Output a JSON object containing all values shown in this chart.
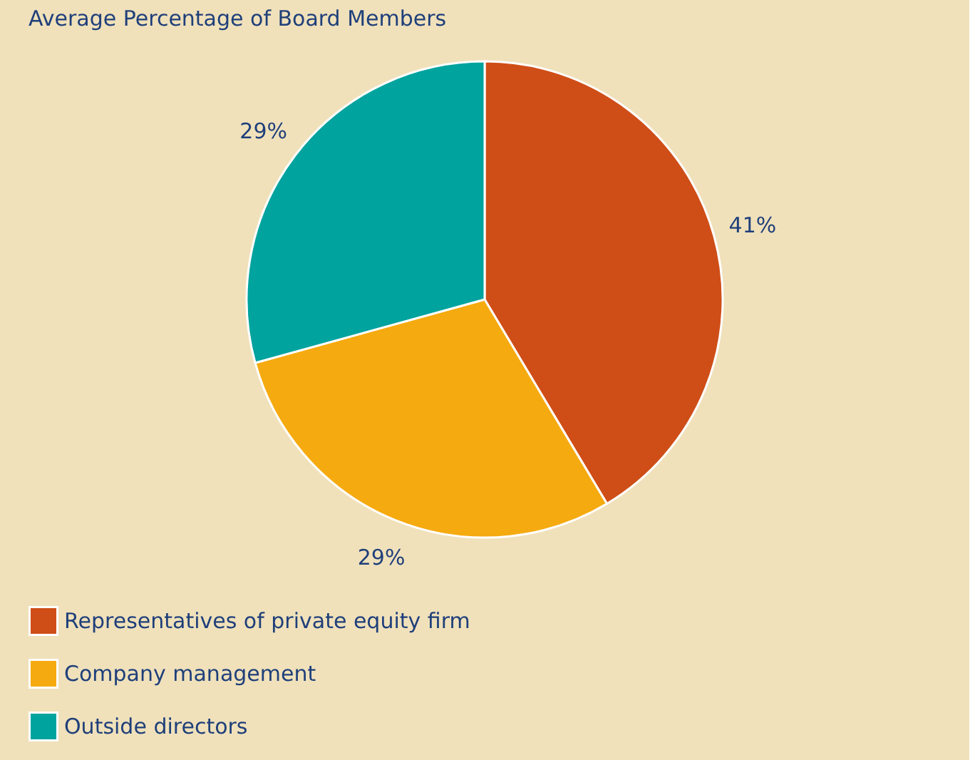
{
  "chart_data": {
    "type": "pie",
    "title": "Average Percentage of Board Members",
    "categories": [
      "Representatives of private equity firm",
      "Company management",
      "Outside directors"
    ],
    "values": [
      41,
      29,
      29
    ],
    "value_labels": [
      "41%",
      "29%",
      "29%"
    ],
    "colors": [
      "#cf4e17",
      "#f5aa10",
      "#00a39e"
    ],
    "legend": "bottom left"
  }
}
